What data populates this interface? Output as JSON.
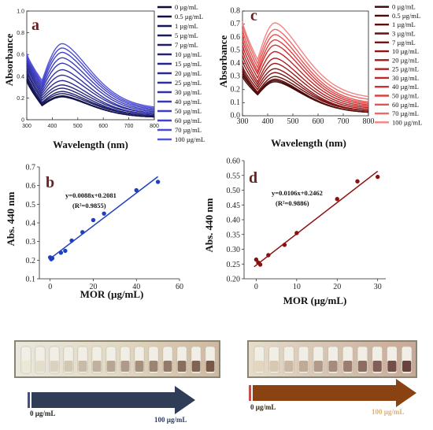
{
  "chart_data": [
    {
      "panel": "a",
      "type": "line",
      "xlabel": "Wavelength (nm)",
      "ylabel": "Absorbance",
      "xlim": [
        300,
        800
      ],
      "ylim": [
        0,
        1.0
      ],
      "x_ticks": [
        "300",
        "400",
        "500",
        "600",
        "700",
        "800"
      ],
      "y_ticks": [
        "0",
        "0.2",
        "0.4",
        "0.6",
        "0.8",
        "1.0"
      ],
      "legend": [
        "0 µg/mL",
        "0.5 µg/mL",
        "1 µg/mL",
        "5 µg/mL",
        "7 µg/mL",
        "10 µg/mL",
        "15 µg/mL",
        "20 µg/mL",
        "25 µg/mL",
        "30 µg/mL",
        "40 µg/mL",
        "50 µg/mL",
        "60 µg/mL",
        "70 µg/mL",
        "100 µg/mL"
      ],
      "legend_placement": "right",
      "colors": [
        "#0b0b3a",
        "#101046",
        "#151552",
        "#1a1a5e",
        "#1f1f6a",
        "#232376",
        "#272783",
        "#2b2b8f",
        "#2f2f9b",
        "#3333a7",
        "#3838b3",
        "#3d3dbf",
        "#4343c9",
        "#4a4ad2",
        "#5656dc"
      ],
      "peak_x": 440,
      "peak_values": [
        0.21,
        0.215,
        0.22,
        0.24,
        0.26,
        0.29,
        0.32,
        0.36,
        0.41,
        0.46,
        0.52,
        0.57,
        0.62,
        0.66,
        0.7
      ],
      "start_values": [
        0.36,
        0.37,
        0.38,
        0.4,
        0.42,
        0.45,
        0.47,
        0.5,
        0.52,
        0.54,
        0.56,
        0.58,
        0.59,
        0.6,
        0.61
      ],
      "valley_values": [
        0.13,
        0.13,
        0.14,
        0.15,
        0.16,
        0.18,
        0.2,
        0.22,
        0.24,
        0.26,
        0.28,
        0.3,
        0.32,
        0.34,
        0.36
      ],
      "end_values": [
        0.02,
        0.02,
        0.02,
        0.03,
        0.03,
        0.03,
        0.04,
        0.04,
        0.05,
        0.05,
        0.06,
        0.07,
        0.08,
        0.09,
        0.1
      ]
    },
    {
      "panel": "c",
      "type": "line",
      "xlabel": "Wavelength (nm)",
      "ylabel": "Absorbance",
      "xlim": [
        300,
        800
      ],
      "ylim": [
        0,
        0.8
      ],
      "x_ticks": [
        "300",
        "400",
        "500",
        "600",
        "700",
        "800"
      ],
      "y_ticks": [
        "0.0",
        "0.1",
        "0.2",
        "0.3",
        "0.4",
        "0.5",
        "0.6",
        "0.7",
        "0.8"
      ],
      "legend": [
        "0 µg/mL",
        "0.5 µg/mL",
        "1 µg/mL",
        "3 µg/mL",
        "7 µg/mL",
        "10 µg/mL",
        "20 µg/mL",
        "25 µg/mL",
        "30 µg/mL",
        "40 µg/mL",
        "50 µg/mL",
        "60 µg/mL",
        "70 µg/mL",
        "100 µg/mL"
      ],
      "legend_placement": "right",
      "colors": [
        "#3a0606",
        "#4a0a0a",
        "#5a0d0d",
        "#6b1010",
        "#7c1313",
        "#8d1616",
        "#9e1a1a",
        "#b01f1f",
        "#c22525",
        "#d03030",
        "#dc4040",
        "#e65252",
        "#ee6868",
        "#f48484"
      ],
      "peak_x": 430,
      "peak_values": [
        0.26,
        0.27,
        0.28,
        0.3,
        0.33,
        0.36,
        0.4,
        0.44,
        0.49,
        0.54,
        0.58,
        0.62,
        0.66,
        0.71
      ],
      "start_values": [
        0.3,
        0.32,
        0.34,
        0.36,
        0.38,
        0.42,
        0.46,
        0.5,
        0.54,
        0.58,
        0.62,
        0.66,
        0.7,
        0.72
      ],
      "valley_values": [
        0.16,
        0.17,
        0.17,
        0.18,
        0.2,
        0.22,
        0.24,
        0.26,
        0.29,
        0.32,
        0.34,
        0.37,
        0.4,
        0.43
      ],
      "end_values": [
        0.02,
        0.02,
        0.02,
        0.03,
        0.03,
        0.03,
        0.04,
        0.05,
        0.06,
        0.07,
        0.08,
        0.09,
        0.11,
        0.13
      ]
    },
    {
      "panel": "b",
      "type": "scatter",
      "xlabel": "MOR (µg/mL)",
      "ylabel": "Abs. 440 nm",
      "xlim": [
        -5,
        60
      ],
      "ylim": [
        0.1,
        0.7
      ],
      "x_ticks": [
        0,
        20,
        40,
        60
      ],
      "y_ticks": [
        "0.1",
        "0.2",
        "0.3",
        "0.4",
        "0.5",
        "0.6",
        "0.7"
      ],
      "x": [
        0,
        0.5,
        1,
        5,
        7,
        10,
        15,
        20,
        25,
        40,
        50
      ],
      "y": [
        0.215,
        0.205,
        0.21,
        0.24,
        0.25,
        0.305,
        0.35,
        0.415,
        0.45,
        0.575,
        0.62
      ],
      "fit": {
        "slope": 0.0088,
        "intercept": 0.2081
      },
      "equation": "y=0.0088x+0.2081",
      "r2": "(R²=0.9855)",
      "point_color": "#1f3fbf",
      "line_color": "#1f3fbf"
    },
    {
      "panel": "d",
      "type": "scatter",
      "xlabel": "MOR (µg/mL)",
      "ylabel": "Abs. 440 nm",
      "xlim": [
        -3,
        32
      ],
      "ylim": [
        0.2,
        0.6
      ],
      "x_ticks": [
        0,
        10,
        20,
        30
      ],
      "y_ticks": [
        "0.20",
        "0.25",
        "0.30",
        "0.35",
        "0.40",
        "0.45",
        "0.50",
        "0.55",
        "0.60"
      ],
      "x": [
        0,
        0.5,
        1,
        3,
        7,
        10,
        20,
        25,
        30
      ],
      "y": [
        0.265,
        0.255,
        0.248,
        0.28,
        0.315,
        0.355,
        0.47,
        0.53,
        0.545
      ],
      "fit": {
        "slope": 0.0106,
        "intercept": 0.2462
      },
      "equation": "y=0.0106x+0.2462",
      "r2": "(R²=0.9886)",
      "point_color": "#8b1010",
      "line_color": "#8b1010"
    }
  ],
  "photos": {
    "left": {
      "start_label": "0 µg/mL",
      "end_label": "100 µg/mL",
      "start_color": "#222222",
      "end_color": "#2d3e6a",
      "arrow_color": "#2d3e57",
      "tube_count": 14
    },
    "right": {
      "start_label": "0 µg/mL",
      "end_label": "100 µg/mL",
      "start_color": "#3a2a0a",
      "end_color": "#e0b070",
      "arrow_color": "#8a4010",
      "tube_count": 11
    }
  }
}
